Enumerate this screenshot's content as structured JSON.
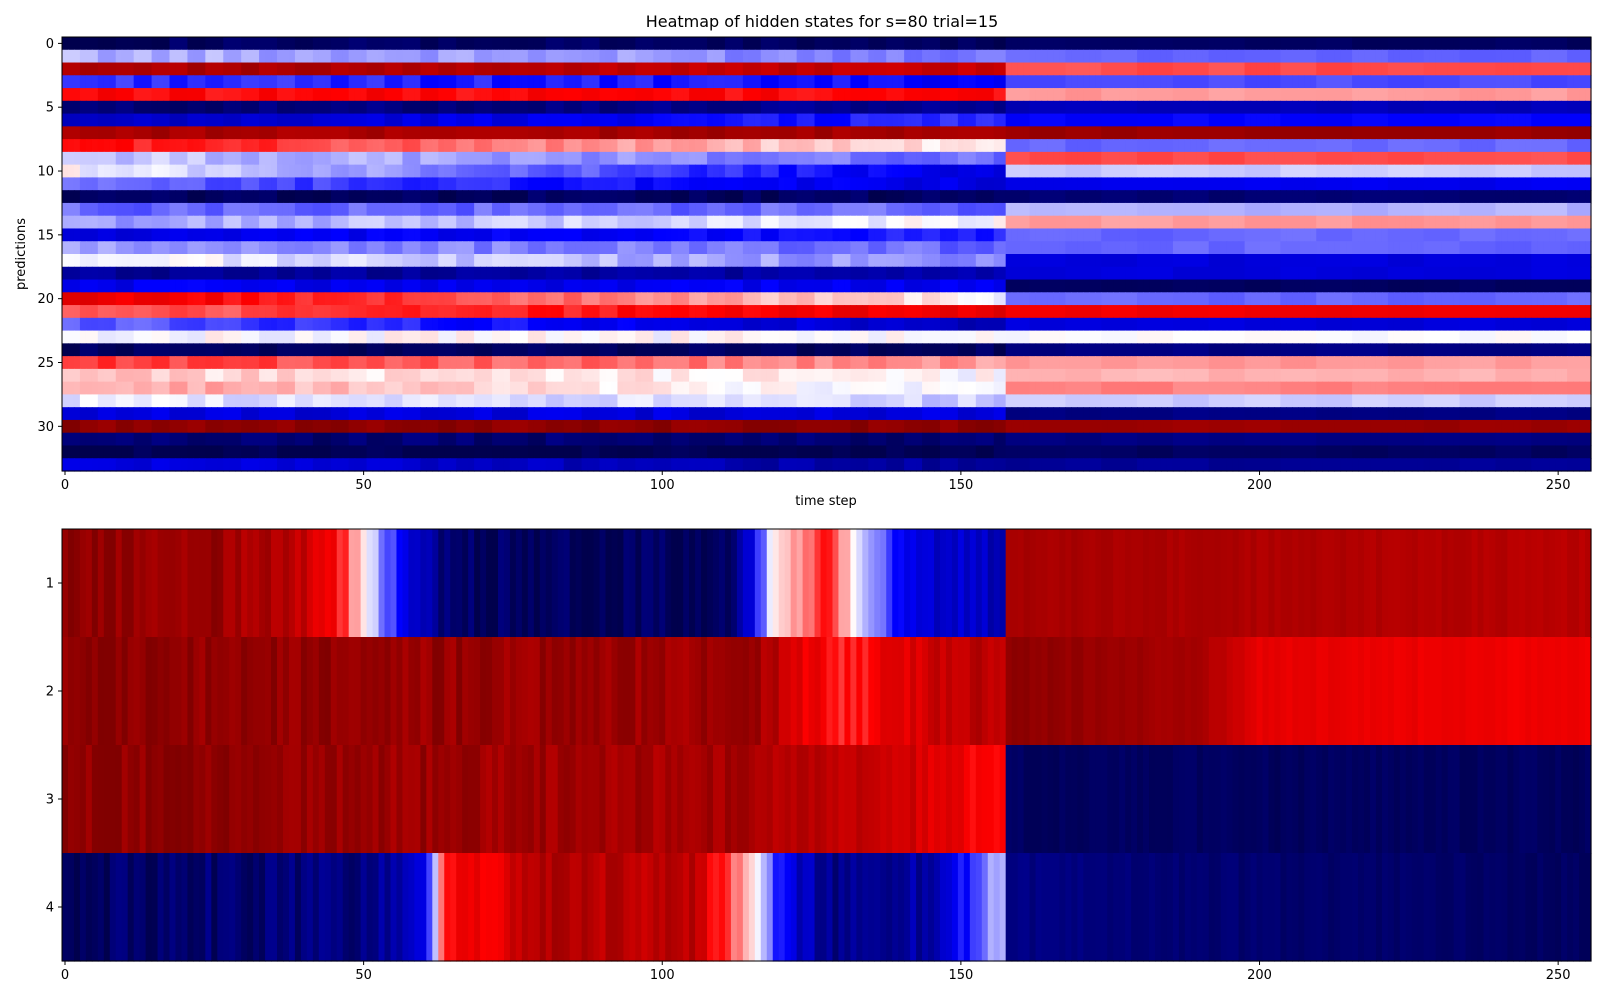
{
  "figure": {
    "title": "Heatmap of hidden states for s=80 trial=15"
  },
  "chart_data": [
    {
      "type": "heatmap",
      "title": "Heatmap of hidden states for s=80 trial=15",
      "xlabel": "time step",
      "ylabel": "predictions",
      "xlim": [
        0,
        255
      ],
      "ylim": [
        0,
        33
      ],
      "x_ticks": [
        "0",
        "50",
        "100",
        "150",
        "200",
        "250"
      ],
      "y_ticks": [
        "0",
        "5",
        "10",
        "15",
        "20",
        "25",
        "30"
      ],
      "x_tick_values": [
        0,
        50,
        100,
        150,
        200,
        250
      ],
      "y_tick_values": [
        0,
        5,
        10,
        15,
        20,
        25,
        30
      ],
      "colormap": "seismic",
      "vmin": -1,
      "vmax": 1,
      "n_timesteps": 256,
      "regime_change_step": 158,
      "rows": [
        {
          "row": 0,
          "seg1": [
            -0.95,
            -0.95
          ],
          "seg2": [
            -0.95,
            -0.95
          ]
        },
        {
          "row": 1,
          "seg1": [
            -0.15,
            -0.25
          ],
          "seg2": [
            -0.3,
            -0.3
          ]
        },
        {
          "row": 2,
          "seg1": [
            0.85,
            0.7
          ],
          "seg2": [
            0.35,
            0.35
          ]
        },
        {
          "row": 3,
          "seg1": [
            -0.4,
            -0.5
          ],
          "seg2": [
            -0.35,
            -0.35
          ]
        },
        {
          "row": 4,
          "seg1": [
            0.5,
            0.5
          ],
          "seg2": [
            0.2,
            0.2
          ]
        },
        {
          "row": 5,
          "seg1": [
            -0.9,
            -0.8
          ],
          "seg2": [
            -0.7,
            -0.7
          ]
        },
        {
          "row": 6,
          "seg1": [
            -0.7,
            -0.4
          ],
          "seg2": [
            -0.5,
            -0.5
          ]
        },
        {
          "row": 7,
          "seg1": [
            0.85,
            0.85
          ],
          "seg2": [
            0.9,
            0.9
          ]
        },
        {
          "row": 8,
          "seg1": [
            0.5,
            0.0
          ],
          "seg2": [
            -0.3,
            -0.3
          ]
        },
        {
          "row": 9,
          "seg1": [
            -0.1,
            -0.3
          ],
          "seg2": [
            0.35,
            0.35
          ]
        },
        {
          "row": 10,
          "seg1": [
            0.0,
            -0.6
          ],
          "seg2": [
            -0.1,
            -0.1
          ]
        },
        {
          "row": 11,
          "seg1": [
            -0.3,
            -0.6
          ],
          "seg2": [
            -0.55,
            -0.55
          ]
        },
        {
          "row": 12,
          "seg1": [
            -0.95,
            -0.95
          ],
          "seg2": [
            -0.9,
            -0.9
          ]
        },
        {
          "row": 13,
          "seg1": [
            -0.3,
            -0.3
          ],
          "seg2": [
            -0.15,
            -0.15
          ]
        },
        {
          "row": 14,
          "seg1": [
            -0.2,
            0.0
          ],
          "seg2": [
            0.2,
            0.2
          ]
        },
        {
          "row": 15,
          "seg1": [
            -0.6,
            -0.45
          ],
          "seg2": [
            -0.3,
            -0.3
          ]
        },
        {
          "row": 16,
          "seg1": [
            -0.2,
            -0.3
          ],
          "seg2": [
            -0.3,
            -0.3
          ]
        },
        {
          "row": 17,
          "seg1": [
            0.0,
            -0.25
          ],
          "seg2": [
            -0.6,
            -0.6
          ]
        },
        {
          "row": 18,
          "seg1": [
            -0.8,
            -0.75
          ],
          "seg2": [
            -0.6,
            -0.6
          ]
        },
        {
          "row": 19,
          "seg1": [
            -0.55,
            -0.55
          ],
          "seg2": [
            -0.95,
            -0.95
          ]
        },
        {
          "row": 20,
          "seg1": [
            0.6,
            0.0
          ],
          "seg2": [
            -0.3,
            -0.3
          ]
        },
        {
          "row": 21,
          "seg1": [
            0.3,
            0.6
          ],
          "seg2": [
            0.55,
            0.55
          ]
        },
        {
          "row": 22,
          "seg1": [
            -0.3,
            -0.7
          ],
          "seg2": [
            -0.6,
            -0.6
          ]
        },
        {
          "row": 23,
          "seg1": [
            0.0,
            0.0
          ],
          "seg2": [
            0.0,
            0.0
          ]
        },
        {
          "row": 24,
          "seg1": [
            -0.95,
            -0.95
          ],
          "seg2": [
            -0.85,
            -0.85
          ]
        },
        {
          "row": 25,
          "seg1": [
            0.4,
            0.2
          ],
          "seg2": [
            0.2,
            0.2
          ]
        },
        {
          "row": 26,
          "seg1": [
            0.1,
            0.0
          ],
          "seg2": [
            0.15,
            0.15
          ]
        },
        {
          "row": 27,
          "seg1": [
            0.2,
            -0.05
          ],
          "seg2": [
            0.25,
            0.25
          ]
        },
        {
          "row": 28,
          "seg1": [
            -0.05,
            -0.1
          ],
          "seg2": [
            -0.1,
            -0.1
          ]
        },
        {
          "row": 29,
          "seg1": [
            -0.6,
            -0.6
          ],
          "seg2": [
            -0.85,
            -0.85
          ]
        },
        {
          "row": 30,
          "seg1": [
            0.95,
            0.95
          ],
          "seg2": [
            0.9,
            0.9
          ]
        },
        {
          "row": 31,
          "seg1": [
            -0.9,
            -0.9
          ],
          "seg2": [
            -0.85,
            -0.85
          ]
        },
        {
          "row": 32,
          "seg1": [
            -1.0,
            -1.0
          ],
          "seg2": [
            -0.95,
            -0.95
          ]
        },
        {
          "row": 33,
          "seg1": [
            -0.55,
            -0.8
          ],
          "seg2": [
            -0.8,
            -0.8
          ]
        }
      ]
    },
    {
      "type": "heatmap",
      "title": "",
      "xlabel": "",
      "ylabel": "",
      "xlim": [
        0,
        255
      ],
      "ylim": [
        1,
        4
      ],
      "x_ticks": [
        "0",
        "50",
        "100",
        "150",
        "200",
        "250"
      ],
      "y_ticks": [
        "1",
        "2",
        "3",
        "4"
      ],
      "x_tick_values": [
        0,
        50,
        100,
        150,
        200,
        250
      ],
      "colormap": "seismic",
      "vmin": -1,
      "vmax": 1,
      "n_timesteps": 256,
      "rows": [
        {
          "row": 1,
          "stops": [
            [
              0,
              0.95
            ],
            [
              25,
              0.9
            ],
            [
              40,
              0.75
            ],
            [
              47,
              0.4
            ],
            [
              50,
              0.0
            ],
            [
              58,
              -0.6
            ],
            [
              63,
              -0.9
            ],
            [
              75,
              -0.95
            ],
            [
              110,
              -0.95
            ],
            [
              114,
              -0.7
            ],
            [
              118,
              -0.1
            ],
            [
              122,
              0.2
            ],
            [
              128,
              0.45
            ],
            [
              134,
              -0.2
            ],
            [
              142,
              -0.6
            ],
            [
              157,
              -0.7
            ],
            [
              158,
              0.85
            ],
            [
              255,
              0.78
            ]
          ]
        },
        {
          "row": 2,
          "stops": [
            [
              0,
              0.95
            ],
            [
              80,
              0.9
            ],
            [
              118,
              0.85
            ],
            [
              122,
              0.6
            ],
            [
              132,
              0.45
            ],
            [
              145,
              0.7
            ],
            [
              157,
              0.8
            ],
            [
              158,
              0.95
            ],
            [
              190,
              0.85
            ],
            [
              200,
              0.6
            ],
            [
              255,
              0.55
            ]
          ]
        },
        {
          "row": 3,
          "stops": [
            [
              0,
              0.95
            ],
            [
              110,
              0.85
            ],
            [
              140,
              0.7
            ],
            [
              150,
              0.55
            ],
            [
              157,
              0.55
            ],
            [
              158,
              -0.95
            ],
            [
              255,
              -0.95
            ]
          ]
        },
        {
          "row": 4,
          "stops": [
            [
              0,
              -0.95
            ],
            [
              50,
              -0.85
            ],
            [
              60,
              -0.65
            ],
            [
              64,
              0.55
            ],
            [
              72,
              0.6
            ],
            [
              80,
              0.8
            ],
            [
              105,
              0.75
            ],
            [
              110,
              0.45
            ],
            [
              115,
              0.15
            ],
            [
              118,
              -0.3
            ],
            [
              122,
              -0.65
            ],
            [
              130,
              -0.85
            ],
            [
              145,
              -0.75
            ],
            [
              152,
              -0.4
            ],
            [
              157,
              -0.1
            ],
            [
              158,
              -0.85
            ],
            [
              190,
              -0.9
            ],
            [
              255,
              -0.95
            ]
          ]
        }
      ]
    }
  ]
}
